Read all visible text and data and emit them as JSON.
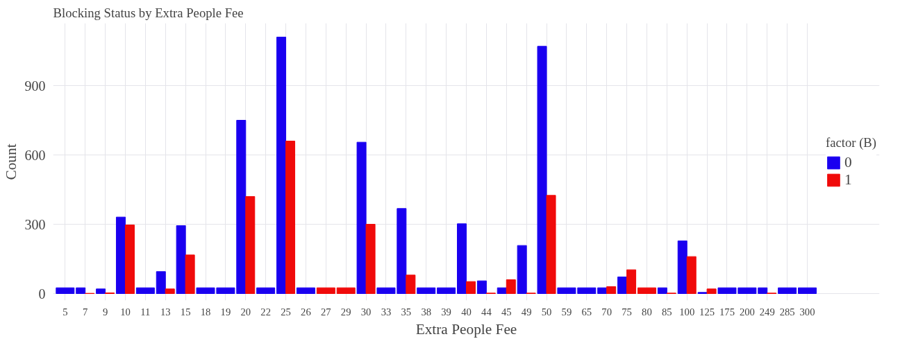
{
  "chart_data": {
    "type": "bar",
    "title": "Blocking Status by Extra People Fee",
    "xlabel": "Extra People Fee",
    "ylabel": "Count",
    "legend_title": "factor (B)",
    "categories": [
      "5",
      "7",
      "9",
      "10",
      "11",
      "13",
      "15",
      "18",
      "19",
      "20",
      "22",
      "25",
      "26",
      "27",
      "29",
      "30",
      "33",
      "35",
      "38",
      "39",
      "40",
      "44",
      "45",
      "49",
      "50",
      "59",
      "65",
      "70",
      "75",
      "80",
      "85",
      "100",
      "125",
      "175",
      "200",
      "249",
      "285",
      "300"
    ],
    "series": [
      {
        "name": "0",
        "color": "#1a00f0",
        "values": [
          25,
          25,
          20,
          331,
          25,
          95,
          294,
          25,
          25,
          750,
          25,
          1110,
          25,
          null,
          null,
          655,
          25,
          368,
          25,
          25,
          302,
          55,
          25,
          208,
          1070,
          25,
          25,
          25,
          72,
          null,
          25,
          228,
          5,
          25,
          25,
          25,
          25,
          25
        ]
      },
      {
        "name": "1",
        "color": "#f00a0a",
        "values": [
          null,
          1,
          3,
          297,
          null,
          20,
          167,
          null,
          null,
          420,
          null,
          660,
          null,
          25,
          25,
          300,
          null,
          80,
          null,
          null,
          52,
          2,
          60,
          2,
          425,
          null,
          null,
          30,
          103,
          25,
          2,
          160,
          20,
          null,
          null,
          2,
          null,
          null
        ]
      }
    ],
    "ylim": [
      -30,
      1170
    ],
    "yticks": [
      0,
      300,
      600,
      900
    ],
    "grid": true,
    "legend": "right"
  }
}
